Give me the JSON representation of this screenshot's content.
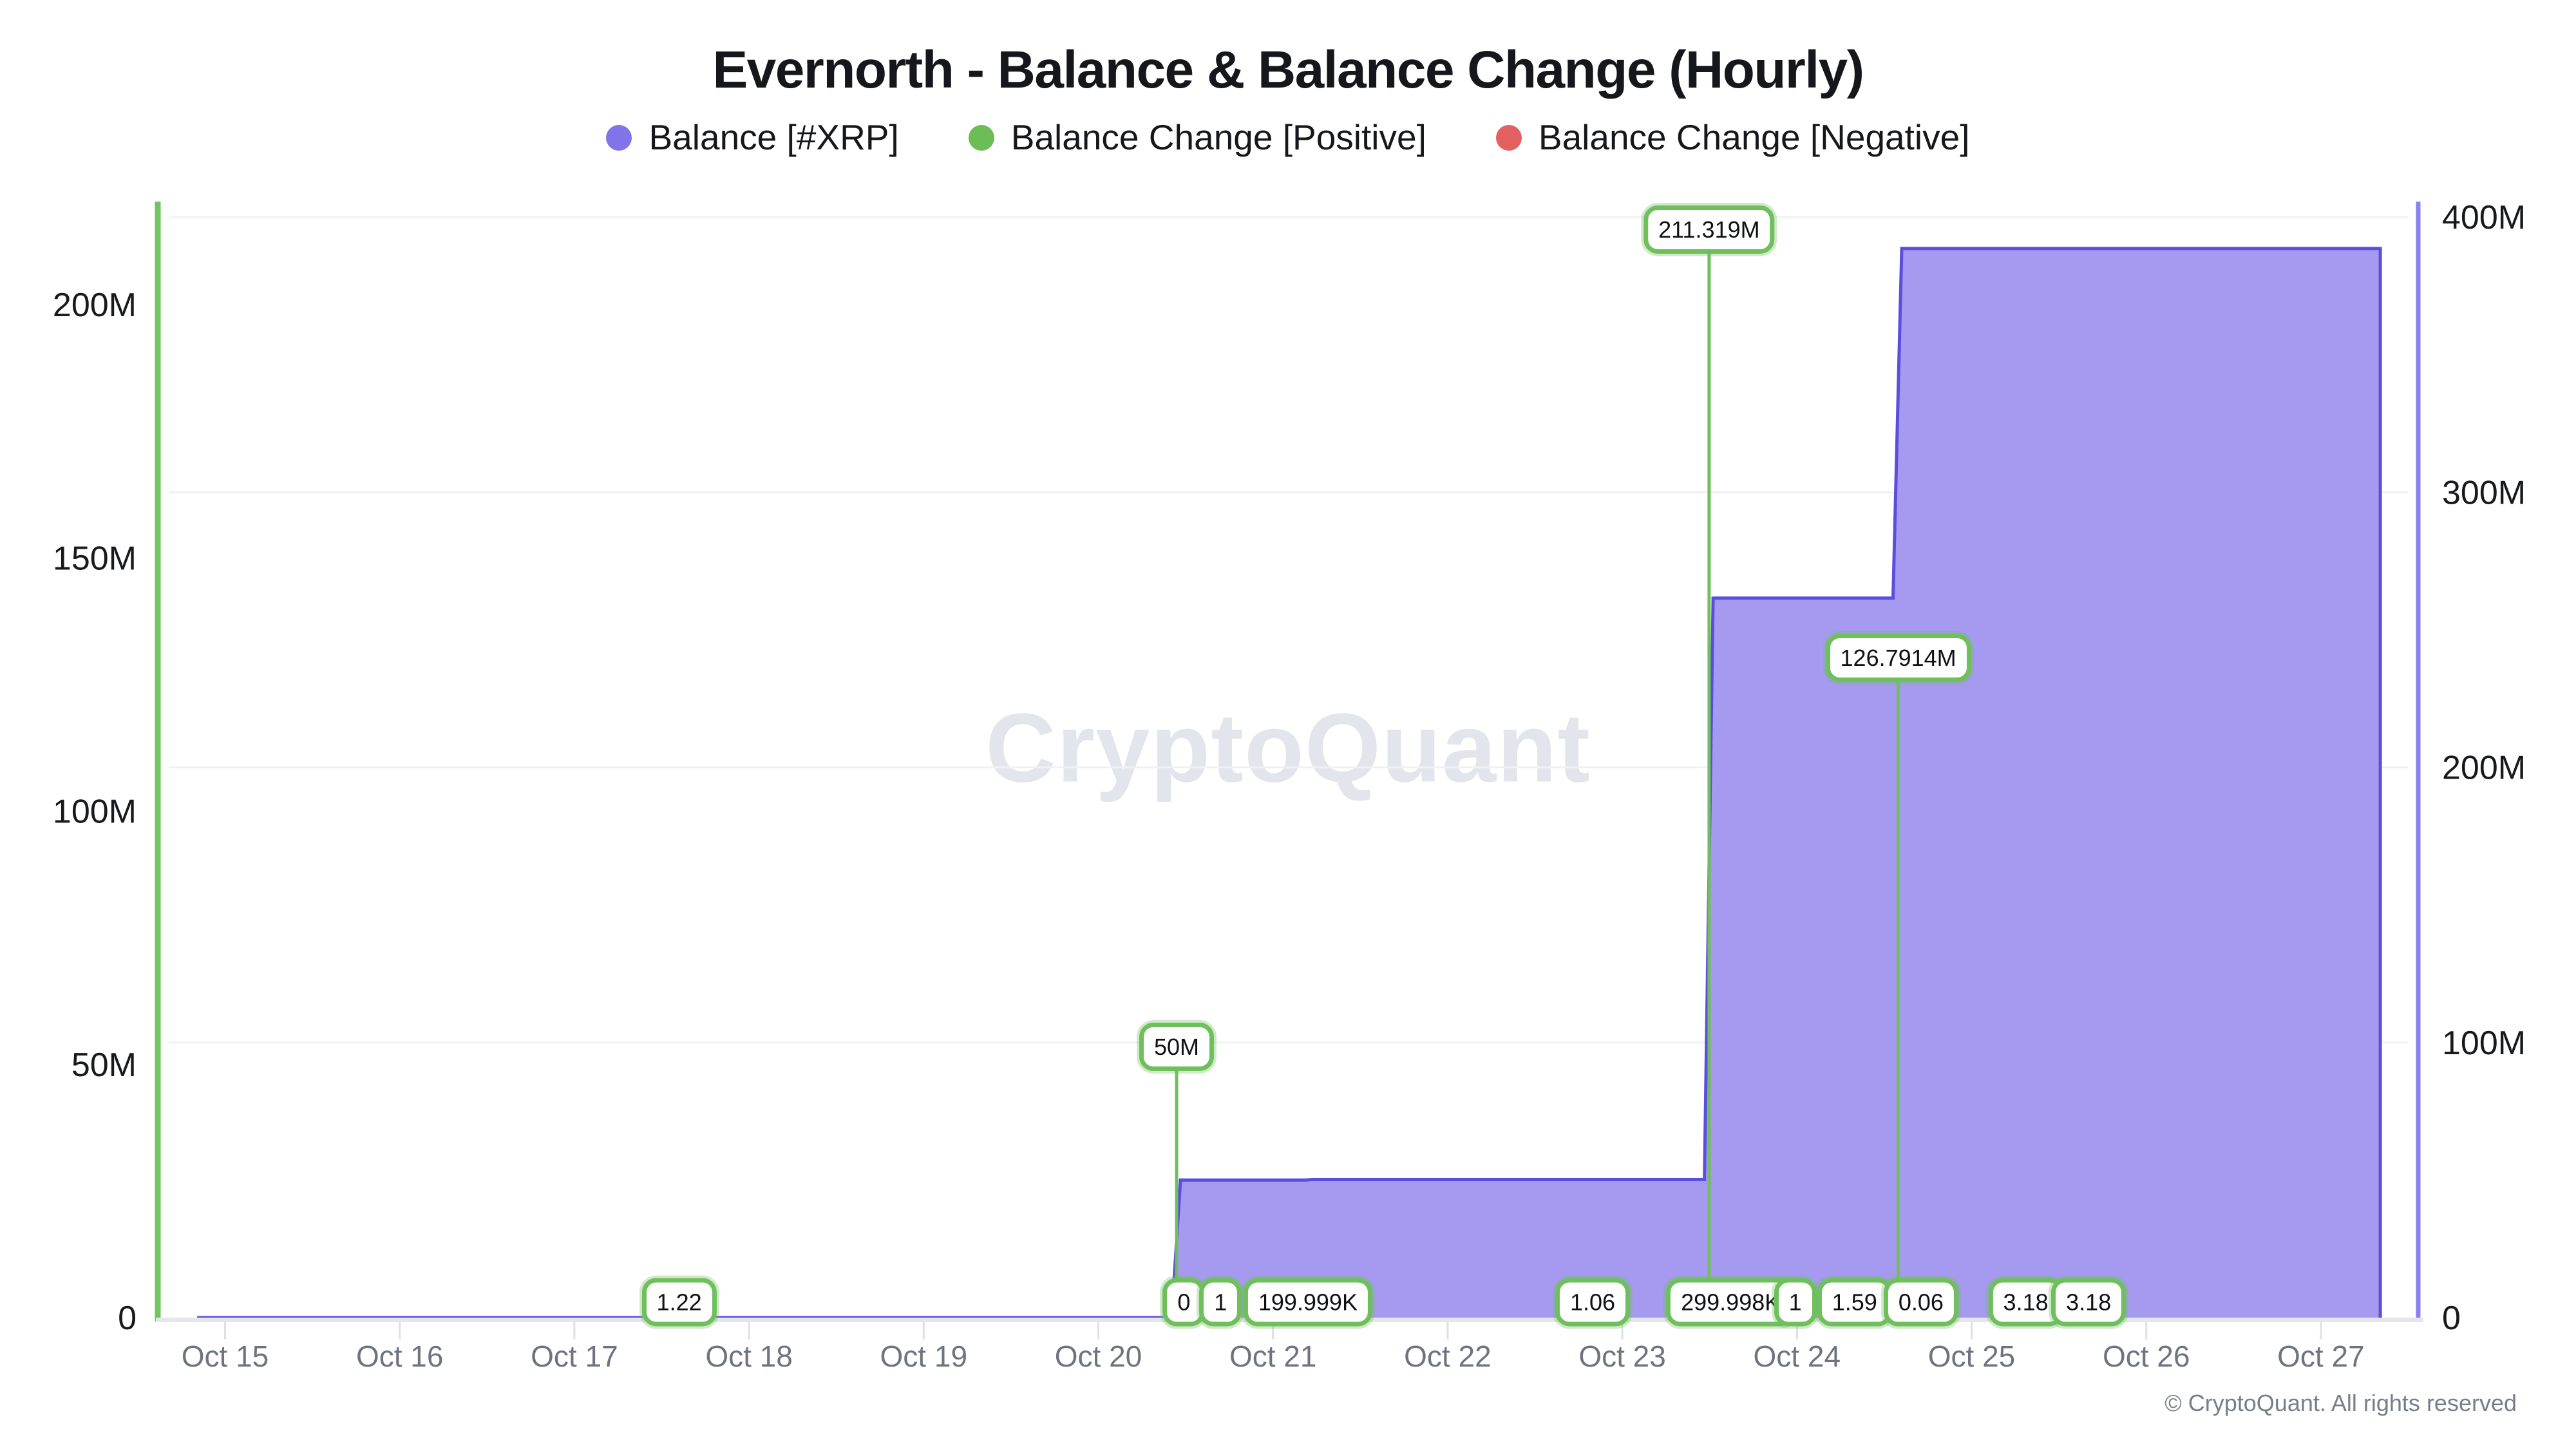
{
  "header": {
    "title": "Evernorth - Balance & Balance Change (Hourly)"
  },
  "legend": [
    {
      "label": "Balance [#XRP]",
      "color": "#8174e9"
    },
    {
      "label": "Balance Change [Positive]",
      "color": "#6cbd55"
    },
    {
      "label": "Balance Change [Negative]",
      "color": "#e26060"
    }
  ],
  "watermark_text": "CryptoQuant",
  "footer": {
    "copyright_text": "© CryptoQuant. All rights reserved"
  },
  "colors": {
    "balance_line": "#5b4ede",
    "balance_fill": "#a59af0",
    "positive": "#6fbf5c",
    "negative": "#e26060",
    "left_axis_line": "#71c562",
    "right_axis_line": "#8b80f1",
    "grid": "#f1f1f4",
    "baseline": "#e5e6ea",
    "tick_mark": "#dfe0e5",
    "x_tick_text": "#6e7380",
    "y_tick_text": "#17191d"
  },
  "chart_data": {
    "type": "area",
    "title": "Evernorth - Balance & Balance Change (Hourly)",
    "legend_position": "top",
    "grid": "horizontal-right-axis-only",
    "x_axis": {
      "unit": "date",
      "first_tick_day": 15,
      "tick_labels": [
        "Oct 15",
        "Oct 16",
        "Oct 17",
        "Oct 18",
        "Oct 19",
        "Oct 20",
        "Oct 21",
        "Oct 22",
        "Oct 23",
        "Oct 24",
        "Oct 25",
        "Oct 26",
        "Oct 27"
      ]
    },
    "left_axis": {
      "series": "Balance Change [Positive]",
      "tick_labels": [
        "0",
        "50M",
        "100M",
        "150M",
        "200M"
      ],
      "tick_values_xrp": [
        0,
        50000000,
        100000000,
        150000000,
        200000000
      ],
      "ylim_xrp": [
        0,
        220000000
      ]
    },
    "right_axis": {
      "series": "Balance [#XRP]",
      "tick_labels": [
        "0",
        "100M",
        "200M",
        "300M",
        "400M"
      ],
      "tick_values_xrp": [
        0,
        100000000,
        200000000,
        300000000,
        400000000
      ],
      "ylim_xrp": [
        0,
        406000000
      ]
    },
    "balance_series": {
      "name": "Balance [#XRP]",
      "style": "step-area",
      "axis": "right",
      "points": [
        {
          "day": 14.84,
          "xrp": 0
        },
        {
          "day": 20.42,
          "xrp": 0
        },
        {
          "day": 20.47,
          "xrp": 50000000
        },
        {
          "day": 21.19,
          "xrp": 50000000
        },
        {
          "day": 21.22,
          "xrp": 50200000
        },
        {
          "day": 23.47,
          "xrp": 50200000
        },
        {
          "day": 23.52,
          "xrp": 261519000
        },
        {
          "day": 24.55,
          "xrp": 261519000
        },
        {
          "day": 24.6,
          "xrp": 388610000
        },
        {
          "day": 27.34,
          "xrp": 388610000
        }
      ]
    },
    "change_series": {
      "name": "Balance Change [Positive]",
      "style": "bar",
      "axis": "left",
      "events": [
        {
          "day": 17.6,
          "label": "1.22",
          "xrp": 1.22
        },
        {
          "day": 20.448,
          "label": "50M",
          "xrp": 50000000
        },
        {
          "day": 20.49,
          "label": "0",
          "xrp": 0
        },
        {
          "day": 20.7,
          "label": "1",
          "xrp": 1
        },
        {
          "day": 21.2,
          "label": "199.999K",
          "xrp": 199999
        },
        {
          "day": 22.83,
          "label": "1.06",
          "xrp": 1.06
        },
        {
          "day": 23.497,
          "label": "211.319M",
          "xrp": 211319000
        },
        {
          "day": 23.62,
          "label": "299.998K",
          "xrp": 299998
        },
        {
          "day": 23.99,
          "label": "1",
          "xrp": 1
        },
        {
          "day": 24.33,
          "label": "1.59",
          "xrp": 1.59
        },
        {
          "day": 24.58,
          "label": "126.7914M",
          "xrp": 126791400
        },
        {
          "day": 24.71,
          "label": "0.06",
          "xrp": 0.06
        },
        {
          "day": 25.31,
          "label": "3.18",
          "xrp": 3.18
        },
        {
          "day": 25.67,
          "label": "3.18",
          "xrp": 3.18
        }
      ]
    },
    "px": {
      "x_origin": 349.5,
      "per_day": 271.2,
      "baseline": 2046,
      "plot_top": 313,
      "left_per_xrp": 7.864e-06,
      "right_per_xrp": 4.272e-06,
      "axis_left_x": 245,
      "axis_right_x": 3755,
      "grid_x1": 262,
      "grid_x2": 3740,
      "baseline_x1": 242,
      "baseline_x2": 3763,
      "tiny_label_y": 2022,
      "x_label_y": 2122,
      "tick_y1": 2053,
      "tick_y2": 2080
    }
  }
}
